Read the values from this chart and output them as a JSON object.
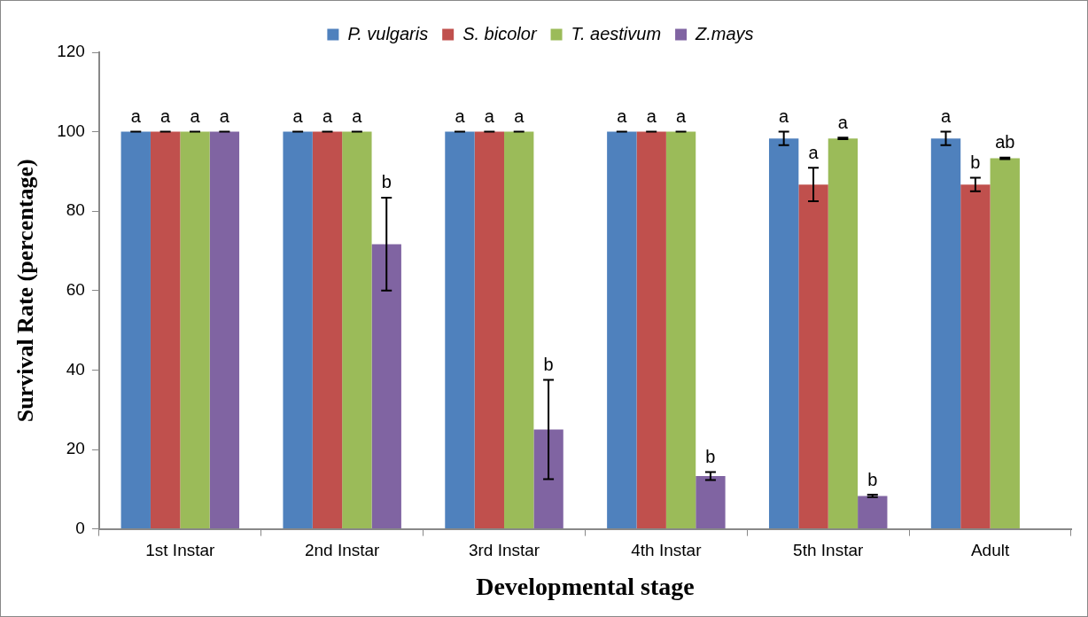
{
  "chart_data": {
    "type": "bar",
    "xlabel": "Developmental stage",
    "ylabel": "Survival Rate (percentage)",
    "categories": [
      "1st Instar",
      "2nd Instar",
      "3rd Instar",
      "4th Instar",
      "5th Instar",
      "Adult"
    ],
    "ylim": [
      0,
      120
    ],
    "yticks": [
      0,
      20,
      40,
      60,
      80,
      100,
      120
    ],
    "grid": false,
    "legend": "top",
    "series": [
      {
        "name": "P. vulgaris",
        "color": "#4f81bd",
        "values": [
          100,
          100,
          100,
          100,
          98.3,
          98.3
        ],
        "errors": [
          0,
          0,
          0,
          0,
          1.7,
          1.7
        ],
        "value_labels": [
          "a",
          "a",
          "a",
          "a",
          "a",
          "a"
        ]
      },
      {
        "name": "S. bicolor",
        "color": "#c0504d",
        "values": [
          100,
          100,
          100,
          100,
          86.7,
          86.7
        ],
        "errors": [
          0,
          0,
          0,
          0,
          4.2,
          1.7
        ],
        "value_labels": [
          "a",
          "a",
          "a",
          "a",
          "a",
          "b"
        ]
      },
      {
        "name": "T. aestivum",
        "color": "#9bbb59",
        "values": [
          100,
          100,
          100,
          100,
          98.3,
          93.3
        ],
        "errors": [
          0,
          0,
          0,
          0,
          0.2,
          0.2
        ],
        "value_labels": [
          "a",
          "a",
          "a",
          "a",
          "a",
          "ab"
        ]
      },
      {
        "name": "Z.mays",
        "color": "#8064a2",
        "values": [
          100,
          71.7,
          25,
          13.3,
          8.3,
          null
        ],
        "errors": [
          0,
          11.7,
          12.5,
          1,
          0.3,
          null
        ],
        "value_labels": [
          "a",
          "b",
          "b",
          "b",
          "b",
          null
        ]
      }
    ]
  }
}
